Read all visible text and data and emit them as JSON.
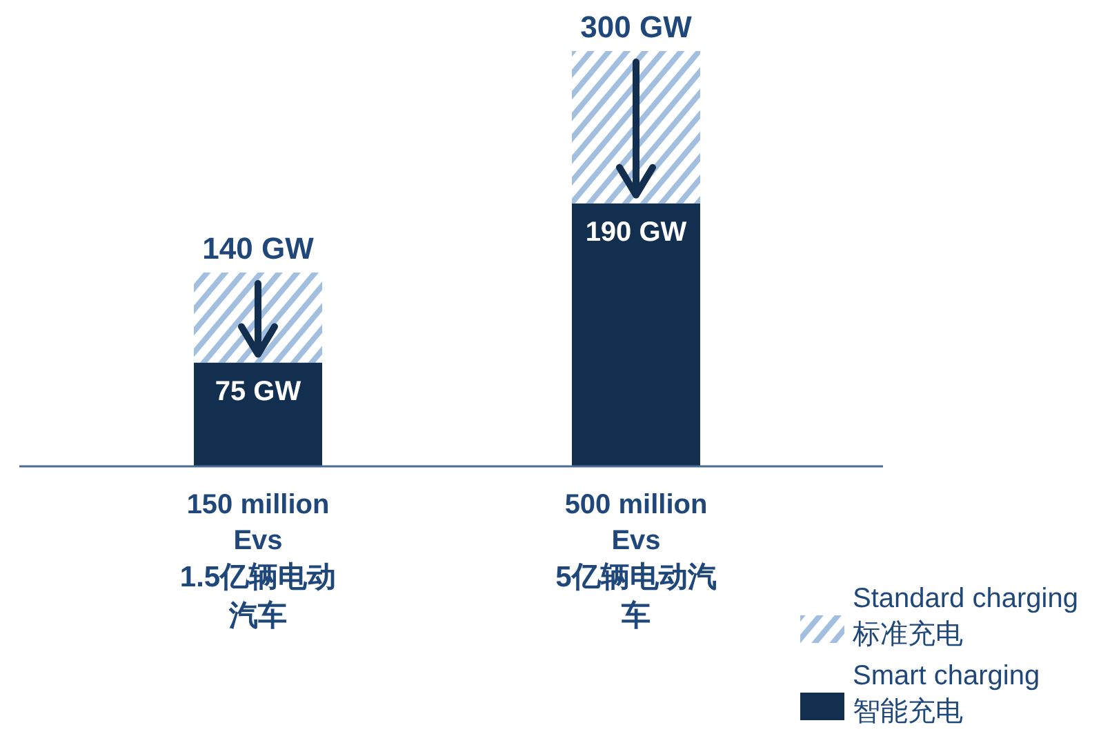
{
  "chart_data": {
    "type": "bar",
    "stacked": true,
    "tick_labels": "x",
    "legend": "bottom right",
    "ylim": [
      0,
      300
    ],
    "categories": [
      "150 million\nEvs\n1.5亿辆电动汽车",
      "500 million\nEvs\n5亿辆电动汽车"
    ],
    "series": [
      {
        "name": "Smart charging\n智能充电",
        "color": "#132f4f",
        "values": [
          75,
          190
        ],
        "value_labels": [
          "75 GW",
          "190 GW"
        ]
      },
      {
        "name": "Standard charging\n标准充电",
        "color": "#a3bfe0",
        "values": [
          65,
          110
        ]
      }
    ],
    "totals": [
      "140 GW",
      "300 GW"
    ]
  }
}
